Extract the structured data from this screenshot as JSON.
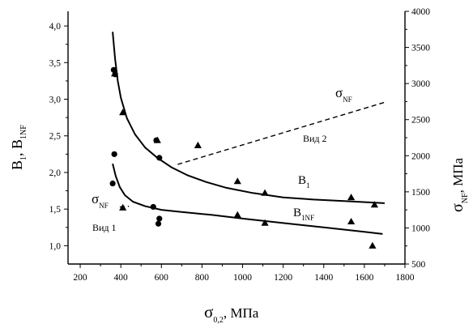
{
  "chart_data": {
    "type": "scatter",
    "x_axis": {
      "label_main": "σ",
      "label_sub": "0,2",
      "label_unit": ", МПа",
      "range": [
        140,
        1800
      ],
      "ticks": [
        200,
        400,
        600,
        800,
        1000,
        1200,
        1400,
        1600,
        1800
      ]
    },
    "y_left": {
      "label_main": "B",
      "label_sub1": "1",
      "label_mid": ", B",
      "label_sub2": "1NF",
      "range": [
        0.75,
        4.2
      ],
      "ticks": [
        "1,0",
        "1,5",
        "2,0",
        "2,5",
        "3,0",
        "3,5",
        "4,0"
      ],
      "tick_values": [
        1.0,
        1.5,
        2.0,
        2.5,
        3.0,
        3.5,
        4.0
      ]
    },
    "y_right": {
      "label_main": "σ",
      "label_sub": "NF",
      "label_unit": ", МПа",
      "range": [
        500,
        4000
      ],
      "ticks": [
        500,
        1000,
        1500,
        2000,
        2500,
        3000,
        3500,
        4000
      ]
    },
    "series": [
      {
        "name": "B1",
        "marker": "triangle",
        "points": [
          [
            370,
            3.35
          ],
          [
            410,
            2.82
          ],
          [
            580,
            2.44
          ],
          [
            780,
            2.37
          ],
          [
            975,
            1.88
          ],
          [
            1110,
            1.72
          ],
          [
            1535,
            1.66
          ],
          [
            1650,
            1.56
          ]
        ]
      },
      {
        "name": "B1NF",
        "marker": "triangle",
        "points": [
          [
            410,
            1.52
          ],
          [
            975,
            1.42
          ],
          [
            1110,
            1.31
          ],
          [
            1535,
            1.33
          ],
          [
            1640,
            1.0
          ]
        ]
      },
      {
        "marker": "circle",
        "points": [
          [
            365,
            3.4
          ],
          [
            372,
            3.34
          ],
          [
            368,
            2.25
          ],
          [
            360,
            1.85
          ],
          [
            560,
            1.53
          ],
          [
            575,
            2.44
          ],
          [
            590,
            2.2
          ],
          [
            590,
            1.37
          ],
          [
            585,
            1.3
          ]
        ]
      },
      {
        "name": "B1 fit",
        "style": "solid",
        "points": [
          [
            360,
            3.92
          ],
          [
            372,
            3.55
          ],
          [
            385,
            3.25
          ],
          [
            400,
            3.02
          ],
          [
            430,
            2.74
          ],
          [
            470,
            2.52
          ],
          [
            520,
            2.34
          ],
          [
            580,
            2.2
          ],
          [
            650,
            2.07
          ],
          [
            730,
            1.96
          ],
          [
            820,
            1.87
          ],
          [
            920,
            1.79
          ],
          [
            1050,
            1.72
          ],
          [
            1200,
            1.66
          ],
          [
            1350,
            1.63
          ],
          [
            1500,
            1.61
          ],
          [
            1700,
            1.58
          ]
        ]
      },
      {
        "name": "B1NF fit",
        "style": "solid",
        "points": [
          [
            360,
            2.12
          ],
          [
            375,
            1.95
          ],
          [
            395,
            1.8
          ],
          [
            420,
            1.69
          ],
          [
            460,
            1.6
          ],
          [
            520,
            1.54
          ],
          [
            600,
            1.49
          ],
          [
            700,
            1.46
          ],
          [
            850,
            1.42
          ],
          [
            1000,
            1.37
          ],
          [
            1200,
            1.31
          ],
          [
            1400,
            1.25
          ],
          [
            1600,
            1.19
          ],
          [
            1690,
            1.16
          ]
        ]
      },
      {
        "name": "σNF, вид 1",
        "axis": "right",
        "style": "dashed",
        "points": [
          [
            395,
            1290
          ],
          [
            440,
            1300
          ]
        ]
      },
      {
        "name": "σNF, вид 2",
        "axis": "right",
        "style": "dashed",
        "points": [
          [
            680,
            1880
          ],
          [
            1700,
            2740
          ]
        ]
      }
    ],
    "annotations": {
      "b1_label_main": "B",
      "b1_label_sub": "1",
      "b1nf_label_main": "B",
      "b1nf_label_sub": "1NF",
      "sigma_nf_main": "σ",
      "sigma_nf_sub": "NF",
      "vid1": "Вид 1",
      "vid2": "Вид 2"
    }
  }
}
